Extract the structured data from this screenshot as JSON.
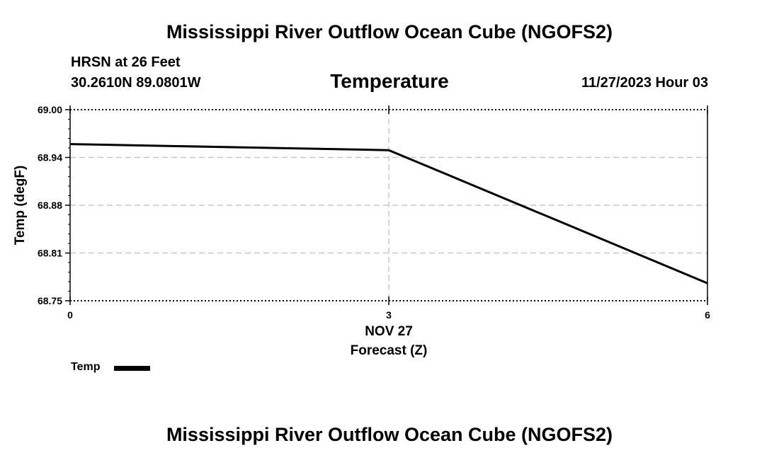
{
  "header": {
    "title": "Mississippi River Outflow Ocean Cube (NGOFS2)",
    "station": "HRSN at 26 Feet",
    "coordinates": "30.2610N  89.0801W",
    "variable": "Temperature",
    "datetime": "11/27/2023 Hour 03"
  },
  "footer": {
    "title": "Mississippi River Outflow Ocean Cube (NGOFS2)"
  },
  "legend": {
    "label": "Temp"
  },
  "colors": {
    "line": "#000000",
    "grid": "#c8c8c8",
    "frame": "#000000"
  },
  "chart_data": {
    "type": "line",
    "title": "Temperature",
    "xlabel": "Forecast (Z)",
    "ylabel": "Temp (degF)",
    "xlim": [
      0,
      6
    ],
    "ylim": [
      68.75,
      69.0
    ],
    "x_ticks": [
      {
        "value": 0,
        "label": "0"
      },
      {
        "value": 3,
        "label": "3"
      },
      {
        "value": 6,
        "label": "6"
      }
    ],
    "x_date_label": {
      "value": 3,
      "label": "NOV 27"
    },
    "y_ticks": [
      {
        "value": 68.75,
        "label": "68.75"
      },
      {
        "value": 68.8125,
        "label": "68.81"
      },
      {
        "value": 68.875,
        "label": "68.88"
      },
      {
        "value": 68.9375,
        "label": "68.94"
      },
      {
        "value": 69.0,
        "label": "69.00"
      }
    ],
    "grid": true,
    "legend": "bottom-left",
    "series": [
      {
        "name": "Temp",
        "x": [
          0,
          3,
          6
        ],
        "y": [
          68.955,
          68.947,
          68.773
        ]
      }
    ]
  }
}
